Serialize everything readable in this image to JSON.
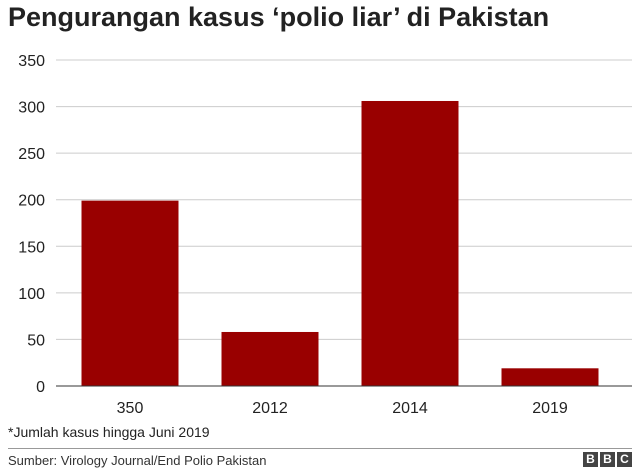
{
  "title": "Pengurangan kasus ‘polio liar’ di Pakistan",
  "footnote": "*Jumlah kasus hingga Juni 2019",
  "source": "Sumber: Virology Journal/End Polio Pakistan",
  "logo": [
    "B",
    "B",
    "C"
  ],
  "colors": {
    "bar": "#990000",
    "grid": "#cccccc",
    "axis": "#333333",
    "text": "#222222"
  },
  "chart_data": {
    "type": "bar",
    "categories": [
      "350",
      "2012",
      "2014",
      "2019"
    ],
    "values": [
      199,
      58,
      306,
      19
    ],
    "title": "Pengurangan kasus ‘polio liar’ di Pakistan",
    "xlabel": "",
    "ylabel": "",
    "ylim": [
      0,
      350
    ],
    "yticks": [
      0,
      50,
      100,
      150,
      200,
      250,
      300,
      350
    ],
    "grid": true,
    "legend": "none"
  }
}
